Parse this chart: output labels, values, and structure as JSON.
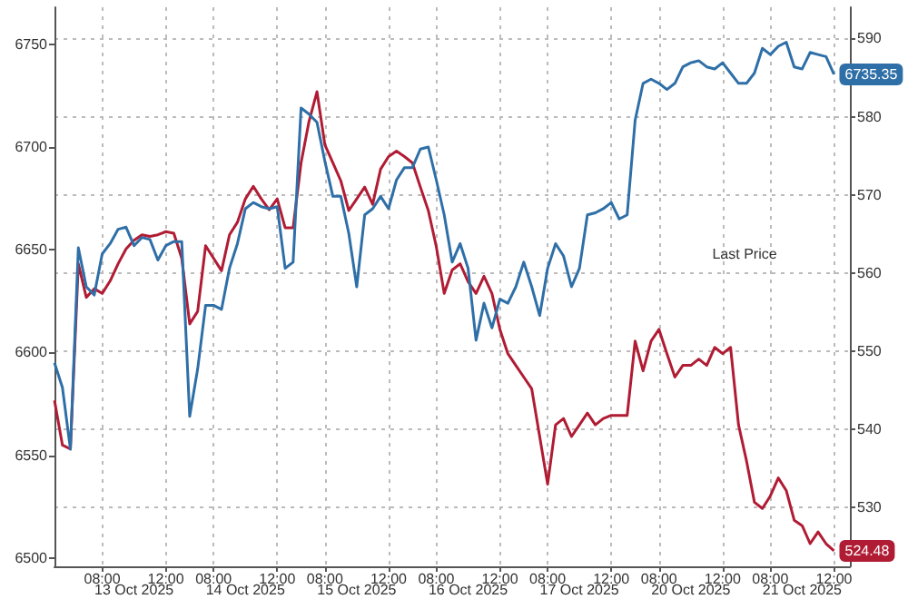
{
  "chart_data": {
    "type": "line",
    "categories": [
      null,
      null,
      null,
      null,
      null,
      null,
      "08:00",
      null,
      null,
      null,
      null,
      null,
      null,
      null,
      "12:00",
      null,
      null,
      null,
      null,
      null,
      "08:00",
      null,
      null,
      null,
      null,
      null,
      null,
      null,
      "12:00",
      null,
      null,
      null,
      null,
      null,
      "08:00",
      null,
      null,
      null,
      null,
      null,
      null,
      null,
      "12:00",
      null,
      null,
      null,
      null,
      null,
      "08:00",
      null,
      null,
      null,
      null,
      null,
      null,
      null,
      "12:00",
      null,
      null,
      null,
      null,
      null,
      "08:00",
      null,
      null,
      null,
      null,
      null,
      null,
      null,
      "12:00",
      null,
      null,
      null,
      null,
      null,
      "08:00",
      null,
      null,
      null,
      null,
      null,
      null,
      null,
      "12:00",
      null,
      null,
      null,
      null,
      null,
      "08:00",
      null,
      null,
      null,
      null,
      null,
      null,
      null,
      "12:00",
      null,
      null
    ],
    "series": [
      {
        "color": "#b01c34",
        "axis": "y2",
        "values": [
          543.7,
          538.0,
          537.5,
          561.2,
          556.9,
          558.0,
          557.4,
          559.0,
          561.2,
          563.1,
          564.2,
          564.9,
          564.7,
          564.9,
          565.3,
          565.1,
          561.9,
          553.5,
          555.1,
          563.5,
          561.9,
          560.3,
          564.9,
          566.5,
          569.5,
          571.1,
          569.5,
          568.1,
          569.5,
          565.8,
          565.8,
          574.1,
          579.4,
          583.2,
          576.4,
          574.1,
          571.8,
          568.0,
          569.5,
          571.0,
          568.8,
          573.3,
          574.9,
          575.6,
          574.9,
          574.1,
          571.0,
          568.0,
          563.4,
          557.4,
          560.4,
          561.2,
          558.9,
          557.4,
          559.6,
          557.4,
          552.8,
          549.7,
          548.2,
          546.7,
          545.2,
          539.1,
          533.0,
          540.6,
          541.4,
          539.1,
          540.6,
          542.1,
          540.6,
          541.4,
          541.8,
          541.8,
          541.8,
          551.3,
          547.5,
          551.3,
          552.8,
          549.7,
          546.7,
          548.2,
          548.2,
          549.0,
          548.2,
          550.5,
          549.7,
          550.5,
          540.6,
          536.0,
          530.7,
          529.9,
          531.5,
          533.8,
          532.2,
          528.4,
          527.7,
          525.4,
          526.9,
          525.4,
          524.48,
          null,
          null
        ],
        "value_labels": [
          null,
          null,
          null,
          null,
          null,
          null,
          null,
          null,
          null,
          null,
          null,
          null,
          null,
          null,
          null,
          null,
          null,
          null,
          null,
          null,
          null,
          null,
          null,
          null,
          null,
          null,
          null,
          null,
          null,
          null,
          null,
          null,
          null,
          null,
          null,
          null,
          null,
          null,
          null,
          null,
          null,
          null,
          null,
          null,
          null,
          null,
          null,
          null,
          null,
          null,
          null,
          null,
          null,
          null,
          null,
          null,
          null,
          null,
          null,
          null,
          null,
          null,
          null,
          null,
          null,
          null,
          null,
          null,
          null,
          null,
          null,
          null,
          null,
          null,
          null,
          null,
          null,
          null,
          null,
          null,
          null,
          null,
          null,
          null,
          null,
          null,
          null,
          null,
          null,
          null,
          null,
          null,
          null,
          null,
          null,
          null,
          null,
          null,
          "524.48",
          null,
          null
        ]
      },
      {
        "color": "#2f6fa7",
        "values": [
          6595,
          6583,
          6553,
          6651,
          6632,
          6628,
          6648,
          6653,
          6660,
          6661,
          6652,
          6656,
          6655,
          6645,
          6652,
          6654,
          6654,
          6569,
          6592,
          6623,
          6623,
          6621,
          6641,
          6653,
          6670,
          6673,
          6671,
          6670,
          6671,
          6641,
          6644,
          6719,
          6716,
          6712,
          6693,
          6676,
          6676,
          6658,
          6632,
          6667,
          6670,
          6676,
          6670,
          6684,
          6690,
          6690,
          6699,
          6700,
          6684,
          6667,
          6644,
          6653,
          6641,
          6606,
          6624,
          6612,
          6626,
          6624,
          6632,
          6644,
          6632,
          6618,
          6641,
          6653,
          6647,
          6632,
          6641,
          6667,
          6668,
          6670,
          6673,
          6665,
          6667,
          6713,
          6731,
          6733,
          6731,
          6728,
          6731,
          6739,
          6741,
          6742,
          6739,
          6738,
          6741,
          6736,
          6731,
          6731,
          6736,
          6748,
          6745,
          6749,
          6751,
          6739,
          6738,
          6746,
          6745,
          6744,
          6735.35,
          null,
          null
        ],
        "value_labels": [
          null,
          null,
          null,
          null,
          null,
          null,
          null,
          null,
          null,
          null,
          null,
          null,
          null,
          null,
          null,
          null,
          null,
          null,
          null,
          null,
          null,
          null,
          null,
          null,
          null,
          null,
          null,
          null,
          null,
          null,
          null,
          null,
          null,
          null,
          null,
          null,
          null,
          null,
          null,
          null,
          null,
          null,
          null,
          null,
          null,
          null,
          null,
          null,
          null,
          null,
          null,
          null,
          null,
          null,
          null,
          null,
          null,
          null,
          null,
          null,
          null,
          null,
          null,
          null,
          null,
          null,
          null,
          null,
          null,
          null,
          null,
          null,
          null,
          null,
          null,
          null,
          null,
          null,
          null,
          null,
          null,
          null,
          null,
          null,
          null,
          null,
          null,
          null,
          null,
          null,
          null,
          null,
          null,
          null,
          null,
          null,
          null,
          null,
          "6735.35",
          null,
          null
        ]
      }
    ],
    "ylim": [
      6496,
      6768
    ],
    "yticks": [
      6500,
      6550,
      6600,
      6650,
      6700,
      6750
    ],
    "y2lim": [
      522.5,
      594
    ],
    "y2ticks": [
      530,
      540,
      550,
      560,
      570,
      580,
      590
    ],
    "grid": true,
    "annotations": [
      "13 Oct 2025",
      "14 Oct 2025",
      "15 Oct 2025",
      "16 Oct 2025",
      "17 Oct 2025",
      "20 Oct 2025",
      "21 Oct 2025",
      "Last Price"
    ]
  }
}
